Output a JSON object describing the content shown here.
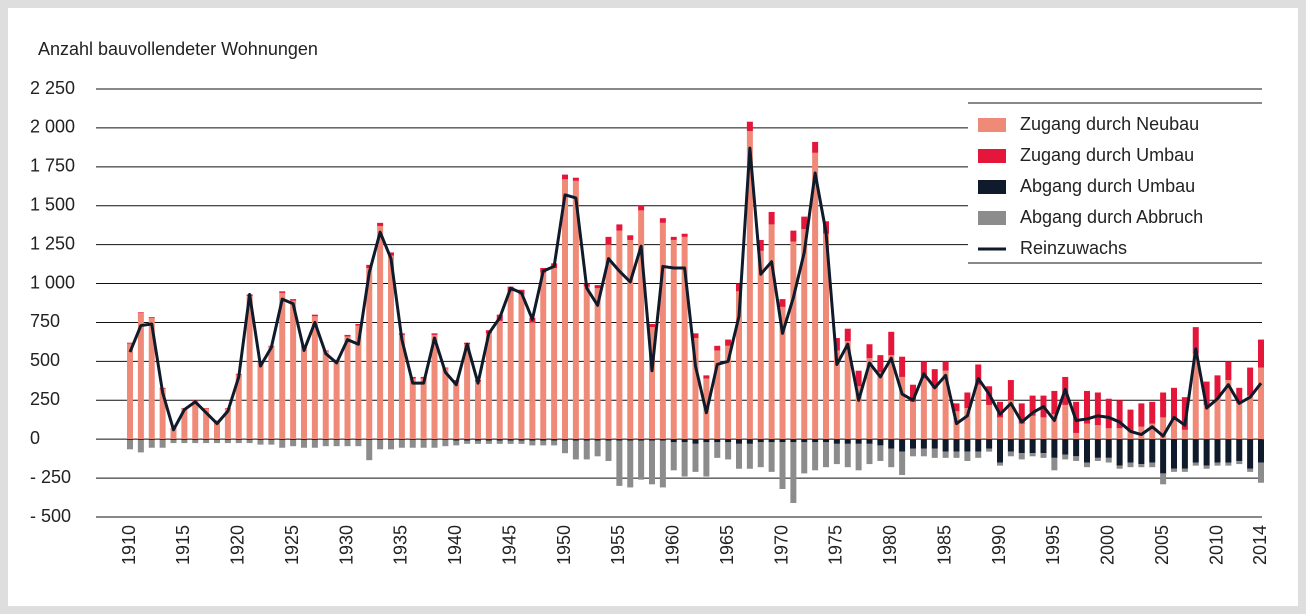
{
  "chart_data": {
    "type": "bar",
    "title": "Anzahl bauvollendeter Wohnungen",
    "categories": [
      "1910",
      null,
      null,
      null,
      null,
      "1915",
      null,
      null,
      null,
      null,
      "1920",
      null,
      null,
      null,
      null,
      "1925",
      null,
      null,
      null,
      null,
      "1930",
      null,
      null,
      null,
      null,
      "1935",
      null,
      null,
      null,
      null,
      "1940",
      null,
      null,
      null,
      null,
      "1945",
      null,
      null,
      null,
      null,
      "1950",
      null,
      null,
      null,
      null,
      "1955",
      null,
      null,
      null,
      null,
      "1960",
      null,
      null,
      null,
      null,
      "1965",
      null,
      null,
      null,
      null,
      "1970",
      null,
      null,
      null,
      null,
      "1975",
      null,
      null,
      null,
      null,
      "1980",
      null,
      null,
      null,
      null,
      "1985",
      null,
      null,
      null,
      null,
      "1990",
      null,
      null,
      null,
      null,
      "1995",
      null,
      null,
      null,
      null,
      "2000",
      null,
      null,
      null,
      null,
      "2005",
      null,
      null,
      null,
      null,
      "2010",
      null,
      null,
      null,
      "2014"
    ],
    "series": [
      {
        "name": "Zugang durch Neubau",
        "color": "#f08a78",
        "type": "bar",
        "values": [
          615,
          810,
          780,
          325,
          67,
          197,
          247,
          197,
          117,
          197,
          415,
          920,
          495,
          595,
          940,
          890,
          595,
          790,
          565,
          505,
          660,
          730,
          1100,
          1370,
          1180,
          670,
          390,
          390,
          670,
          455,
          370,
          610,
          370,
          680,
          760,
          950,
          930,
          750,
          1070,
          1100,
          1670,
          1660,
          980,
          970,
          1250,
          1340,
          1280,
          1470,
          720,
          1390,
          1280,
          1300,
          650,
          390,
          570,
          600,
          950,
          1980,
          1210,
          1380,
          850,
          1270,
          1350,
          1840,
          1320,
          570,
          630,
          340,
          520,
          430,
          540,
          400,
          240,
          390,
          330,
          440,
          180,
          200,
          350,
          220,
          140,
          250,
          100,
          150,
          140,
          160,
          220,
          40,
          100,
          90,
          70,
          70,
          50,
          80,
          100,
          140,
          130,
          60,
          550,
          220,
          260,
          380,
          230,
          280,
          460
        ]
      },
      {
        "name": "Zugang durch Umbau",
        "color": "#e4173b",
        "type": "bar",
        "values": [
          5,
          5,
          5,
          5,
          3,
          3,
          3,
          3,
          3,
          3,
          5,
          10,
          5,
          5,
          10,
          10,
          5,
          10,
          5,
          5,
          10,
          10,
          20,
          20,
          20,
          10,
          10,
          10,
          10,
          5,
          10,
          10,
          10,
          20,
          40,
          30,
          30,
          30,
          30,
          30,
          30,
          20,
          20,
          20,
          50,
          40,
          30,
          30,
          20,
          30,
          20,
          20,
          30,
          20,
          30,
          40,
          50,
          60,
          70,
          80,
          50,
          70,
          80,
          70,
          80,
          80,
          80,
          100,
          90,
          110,
          150,
          130,
          110,
          110,
          120,
          60,
          50,
          100,
          130,
          120,
          100,
          130,
          130,
          130,
          140,
          150,
          180,
          200,
          210,
          210,
          190,
          180,
          140,
          150,
          140,
          160,
          200,
          210,
          170,
          150,
          150,
          120,
          100,
          180,
          180
        ]
      },
      {
        "name": "Abgang durch Umbau",
        "color": "#0f1a2a",
        "type": "bar",
        "values": [
          -5,
          -5,
          -5,
          -5,
          -5,
          -5,
          -5,
          -5,
          -5,
          -5,
          -5,
          -5,
          -5,
          -5,
          -5,
          -5,
          -5,
          -5,
          -5,
          -5,
          -5,
          -5,
          -5,
          -5,
          -5,
          -5,
          -5,
          -5,
          -5,
          -5,
          -10,
          -10,
          -10,
          -10,
          -10,
          -10,
          -10,
          -10,
          -10,
          -10,
          -10,
          -10,
          -10,
          -10,
          -10,
          -10,
          -10,
          -10,
          -10,
          -10,
          -20,
          -20,
          -30,
          -20,
          -20,
          -20,
          -30,
          -30,
          -20,
          -20,
          -20,
          -20,
          -20,
          -20,
          -20,
          -30,
          -30,
          -30,
          -30,
          -40,
          -60,
          -80,
          -60,
          -60,
          -60,
          -80,
          -80,
          -80,
          -80,
          -60,
          -150,
          -80,
          -90,
          -90,
          -90,
          -120,
          -100,
          -110,
          -150,
          -120,
          -120,
          -170,
          -150,
          -160,
          -150,
          -220,
          -190,
          -190,
          -150,
          -170,
          -150,
          -150,
          -140,
          -190,
          -150
        ]
      },
      {
        "name": "Abgang durch Abbruch",
        "color": "#8c8c8c",
        "type": "bar",
        "values": [
          -60,
          -80,
          -50,
          -50,
          -20,
          -20,
          -20,
          -20,
          -20,
          -20,
          -20,
          -20,
          -30,
          -30,
          -50,
          -40,
          -50,
          -50,
          -40,
          -40,
          -40,
          -40,
          -130,
          -60,
          -60,
          -50,
          -50,
          -50,
          -50,
          -40,
          -30,
          -20,
          -20,
          -20,
          -20,
          -20,
          -20,
          -30,
          -30,
          -30,
          -80,
          -120,
          -120,
          -100,
          -130,
          -290,
          -300,
          -250,
          -280,
          -300,
          -180,
          -220,
          -180,
          -220,
          -100,
          -110,
          -160,
          -160,
          -160,
          -190,
          -300,
          -390,
          -200,
          -180,
          -160,
          -130,
          -150,
          -170,
          -130,
          -100,
          -120,
          -150,
          -50,
          -50,
          -60,
          -40,
          -40,
          -60,
          -40,
          -20,
          -20,
          -30,
          -40,
          -20,
          -30,
          -80,
          -30,
          -30,
          -30,
          -20,
          -30,
          -20,
          -30,
          -20,
          -30,
          -70,
          -20,
          -20,
          -20,
          -20,
          -20,
          -20,
          -20,
          -20,
          -130
        ]
      },
      {
        "name": "Reinzuwachs",
        "color": "#0f1a2a",
        "type": "line",
        "values": [
          560,
          730,
          740,
          300,
          60,
          190,
          240,
          170,
          100,
          180,
          400,
          930,
          470,
          590,
          900,
          870,
          570,
          750,
          550,
          490,
          640,
          610,
          1070,
          1330,
          1160,
          640,
          360,
          360,
          650,
          430,
          350,
          610,
          360,
          680,
          780,
          970,
          940,
          770,
          1080,
          1110,
          1570,
          1550,
          970,
          860,
          1160,
          1080,
          1010,
          1240,
          440,
          1110,
          1100,
          1100,
          470,
          170,
          480,
          500,
          790,
          1870,
          1060,
          1140,
          680,
          910,
          1200,
          1710,
          1330,
          480,
          610,
          250,
          490,
          400,
          520,
          290,
          250,
          420,
          330,
          410,
          100,
          150,
          390,
          290,
          160,
          230,
          110,
          170,
          210,
          120,
          320,
          120,
          130,
          150,
          140,
          110,
          50,
          30,
          80,
          20,
          140,
          90,
          580,
          200,
          260,
          350,
          230,
          270,
          360
        ]
      }
    ],
    "ylim": [
      -500,
      2250
    ],
    "yticks": [
      {
        "value": -500,
        "label": "- 500"
      },
      {
        "value": -250,
        "label": "- 250"
      },
      0,
      250,
      500,
      750,
      {
        "value": 1000,
        "label": "1 000"
      },
      {
        "value": 1250,
        "label": "1 250"
      },
      {
        "value": 1500,
        "label": "1 500"
      },
      {
        "value": 1750,
        "label": "1 750"
      },
      {
        "value": 2000,
        "label": "2 000"
      },
      {
        "value": 2250,
        "label": "2 250"
      }
    ],
    "grid": true,
    "legend": "top-right"
  }
}
